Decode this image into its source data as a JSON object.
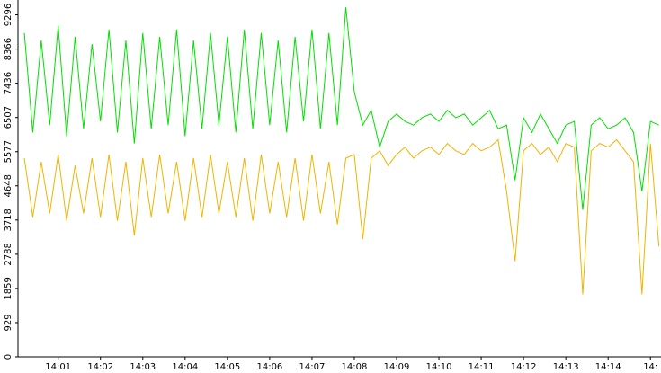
{
  "chart_data": {
    "type": "line",
    "x": [
      0.2,
      0.4,
      0.6,
      0.8,
      1.0,
      1.2,
      1.4,
      1.6,
      1.8,
      2.0,
      2.2,
      2.4,
      2.6,
      2.8,
      3.0,
      3.2,
      3.4,
      3.6,
      3.8,
      4.0,
      4.2,
      4.4,
      4.6,
      4.8,
      5.0,
      5.2,
      5.4,
      5.6,
      5.8,
      6.0,
      6.2,
      6.4,
      6.6,
      6.8,
      7.0,
      7.2,
      7.4,
      7.6,
      7.8,
      8.0,
      8.2,
      8.4,
      8.6,
      8.8,
      9.0,
      9.2,
      9.4,
      9.6,
      9.8,
      10.0,
      10.2,
      10.4,
      10.6,
      10.8,
      11.0,
      11.2,
      11.4,
      11.6,
      11.8,
      12.0,
      12.2,
      12.4,
      12.6,
      12.8,
      13.0,
      13.2,
      13.4,
      13.6,
      13.8,
      14.0,
      14.2,
      14.4,
      14.6,
      14.8,
      15.0,
      15.2
    ],
    "series": [
      {
        "color": "#00e000",
        "values": [
          8800,
          6100,
          8600,
          6300,
          9000,
          6000,
          8700,
          6200,
          8500,
          6400,
          8900,
          6100,
          8600,
          5800,
          8800,
          6200,
          8700,
          6300,
          8900,
          6000,
          8600,
          6200,
          8800,
          6300,
          8700,
          6100,
          8900,
          6200,
          8800,
          6300,
          8600,
          6100,
          8700,
          6400,
          8900,
          6200,
          8800,
          6300,
          9500,
          7200,
          6300,
          6700,
          5700,
          6400,
          6600,
          6400,
          6300,
          6500,
          6600,
          6400,
          6700,
          6500,
          6600,
          6300,
          6500,
          6700,
          6200,
          6300,
          4800,
          6500,
          6100,
          6600,
          6200,
          5800,
          6300,
          6400,
          4000,
          6300,
          6500,
          6200,
          6300,
          6500,
          6100,
          4500,
          6400,
          6300
        ]
      },
      {
        "color": "#f0b400",
        "values": [
          5400,
          3800,
          5300,
          3900,
          5500,
          3700,
          5200,
          3900,
          5400,
          3800,
          5500,
          3700,
          5300,
          3300,
          5400,
          3800,
          5500,
          3900,
          5300,
          3700,
          5400,
          3800,
          5500,
          3900,
          5300,
          3800,
          5400,
          3700,
          5500,
          3900,
          5300,
          3800,
          5400,
          3700,
          5500,
          3900,
          5300,
          3600,
          5400,
          5500,
          3200,
          5400,
          5600,
          5200,
          5500,
          5700,
          5400,
          5600,
          5700,
          5500,
          5800,
          5600,
          5500,
          5800,
          5600,
          5700,
          5900,
          4500,
          2600,
          5600,
          5800,
          5500,
          5700,
          5300,
          5800,
          5700,
          1700,
          5600,
          5800,
          5700,
          5900,
          5600,
          5300,
          1700,
          5800,
          3000
        ]
      }
    ],
    "xlim": [
      0.05,
      15.25
    ],
    "xticks": [
      {
        "value": 1,
        "label": "14:01"
      },
      {
        "value": 2,
        "label": "14:02"
      },
      {
        "value": 3,
        "label": "14:03"
      },
      {
        "value": 4,
        "label": "14:04"
      },
      {
        "value": 5,
        "label": "14:05"
      },
      {
        "value": 6,
        "label": "14:06"
      },
      {
        "value": 7,
        "label": "14:07"
      },
      {
        "value": 8,
        "label": "14:08"
      },
      {
        "value": 9,
        "label": "14:09"
      },
      {
        "value": 10,
        "label": "14:10"
      },
      {
        "value": 11,
        "label": "14:11"
      },
      {
        "value": 12,
        "label": "14:12"
      },
      {
        "value": 13,
        "label": "14:13"
      },
      {
        "value": 14,
        "label": "14:14"
      },
      {
        "value": 15,
        "label": "14:"
      }
    ],
    "ylim": [
      0,
      9700
    ],
    "yticks": [
      0,
      929,
      1859,
      2788,
      3718,
      4648,
      5577,
      6507,
      7436,
      8366,
      9296
    ]
  }
}
